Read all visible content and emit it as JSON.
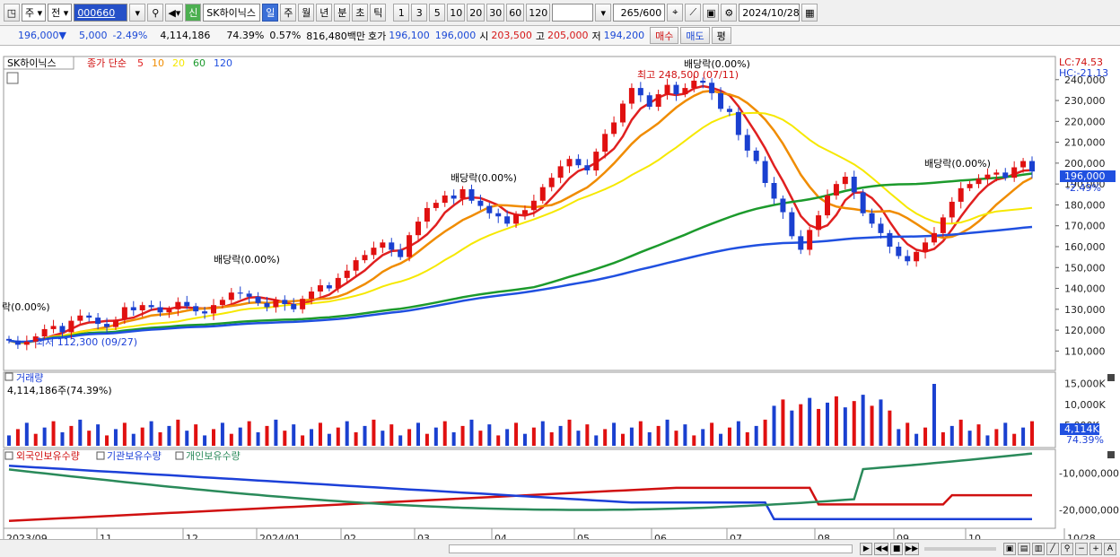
{
  "toolbar": {
    "market": "주",
    "prev": "전",
    "code": "000660",
    "badge": "신",
    "stock_name": "SK하이닉스",
    "periods": [
      "일",
      "주",
      "월",
      "년",
      "분",
      "초",
      "틱"
    ],
    "active_period": "일",
    "intervals": [
      "1",
      "3",
      "5",
      "10",
      "20",
      "30",
      "60",
      "120"
    ],
    "count": "265",
    "total": "/600",
    "date": "2024/10/28"
  },
  "quote": {
    "price": "196,000",
    "arrow": "▼",
    "change": "5,000",
    "change_pct": "-2.49%",
    "volume": "4,114,186",
    "vol_ratio": "74.39%",
    "turnover": "0.57%",
    "amount": "816,480백만",
    "hoga_label": "호가",
    "bid": "196,100",
    "ask": "196,000",
    "open_label": "시",
    "open": "203,500",
    "high_label": "고",
    "high": "205,000",
    "low_label": "저",
    "low": "194,200",
    "buy": "매수",
    "sell": "매도",
    "eval": "평"
  },
  "price_panel": {
    "legend_name": "SK하이닉스",
    "legend_ma": "종가 단순",
    "ma_periods": [
      "5",
      "10",
      "20",
      "60",
      "120"
    ],
    "ma_colors": [
      "#e02020",
      "#f08c00",
      "#f6e800",
      "#1c9a2c",
      "#2050e0"
    ],
    "lc": "LC:74.53",
    "hc": "HC:-21.13",
    "current_price": "196,000",
    "current_pct": "-2.49%",
    "high_note": "최고 248,500 (07/11)",
    "low_note": "최저 112,300 (09/27)",
    "dividends": [
      "락(0.00%)",
      "배당락(0.00%)",
      "배당락(0.00%)",
      "배당락(0.00%)",
      "배당락(0.00%)"
    ],
    "y_ticks": [
      "240,000",
      "230,000",
      "220,000",
      "210,000",
      "200,000",
      "190,000",
      "180,000",
      "170,000",
      "160,000",
      "150,000",
      "140,000",
      "130,000",
      "120,000",
      "110,000"
    ]
  },
  "volume_panel": {
    "title": "거래량",
    "value": "4,114,186주(74.39%)",
    "y_ticks": [
      "15,000K",
      "10,000K",
      "5,000K"
    ],
    "current": "4,114K",
    "current_pct": "74.39%"
  },
  "holdings_panel": {
    "series": [
      "외국인보유수량",
      "기관보유수량",
      "개인보유수량"
    ],
    "colors": [
      "#d01010",
      "#1c40d8",
      "#2a8a5a"
    ],
    "y_ticks": [
      "-10,000,000",
      "-20,000,000"
    ]
  },
  "x_axis": [
    "2023/09",
    "11",
    "12",
    "2024/01",
    "02",
    "03",
    "04",
    "05",
    "06",
    "07",
    "08",
    "09",
    "10",
    "10/28"
  ],
  "chart_data": {
    "type": "candlestick",
    "dates_start": "2023/09",
    "dates_end": "2024/10/28",
    "closes": [
      115000,
      113000,
      114500,
      117000,
      120500,
      122000,
      119000,
      124500,
      127000,
      126000,
      123000,
      121500,
      125000,
      131000,
      129500,
      132000,
      131000,
      128500,
      130000,
      133500,
      131500,
      129000,
      128000,
      132000,
      134500,
      138000,
      137500,
      136000,
      133000,
      131000,
      134500,
      132500,
      130000,
      135000,
      138500,
      141500,
      140000,
      145000,
      148500,
      153500,
      156000,
      159500,
      162000,
      158500,
      155000,
      165500,
      172000,
      178500,
      181000,
      184500,
      183000,
      187500,
      182000,
      179500,
      176000,
      174500,
      171000,
      175500,
      177500,
      182000,
      188500,
      193000,
      198500,
      202000,
      199000,
      196500,
      205500,
      214000,
      219500,
      228500,
      236000,
      232500,
      227000,
      233000,
      237500,
      233000,
      236000,
      239500,
      238500,
      233500,
      226000,
      224500,
      213500,
      206000,
      201000,
      190500,
      183000,
      176500,
      165000,
      158500,
      168000,
      175000,
      184500,
      190000,
      193500,
      186000,
      176000,
      171000,
      166500,
      160000,
      155500,
      153000,
      157500,
      162000,
      166500,
      174000,
      181500,
      188000,
      190000,
      192500,
      194500,
      195500,
      193000,
      198000,
      201000,
      196000
    ],
    "ma_note": "moving averages 5/10/20/60/120 computed in script",
    "y_range": [
      105000,
      248500
    ],
    "volume_range_k": [
      0,
      16000
    ],
    "holdings_range": [
      -25000000,
      -5000000
    ]
  }
}
